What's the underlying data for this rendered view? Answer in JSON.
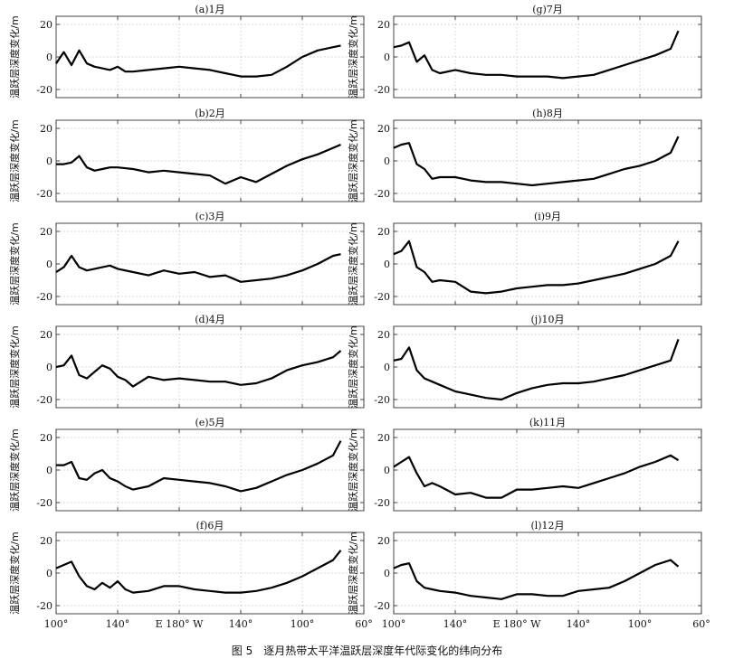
{
  "caption": "图 5　逐月热带太平洋温跃层深度年代际变化的纬向分布",
  "shared_axes": {
    "ylabel": "温跃层深度变化/m",
    "x_ticks": [
      100,
      140,
      180,
      220,
      260,
      300
    ],
    "x_tick_labels": [
      "100°",
      "140°",
      "E 180° W",
      "140°",
      "100°",
      "60°"
    ],
    "y_ticks": [
      20,
      0,
      -20
    ],
    "xlim": [
      100,
      300
    ],
    "ylim": [
      -25,
      25
    ],
    "grid": "dotted",
    "line_color": "#000000"
  },
  "chart_data": [
    {
      "type": "line",
      "title": "(a)1月",
      "x": [
        100,
        105,
        110,
        115,
        120,
        125,
        130,
        135,
        140,
        145,
        150,
        160,
        170,
        180,
        190,
        200,
        210,
        220,
        230,
        240,
        250,
        260,
        270,
        280,
        285
      ],
      "values": [
        -4,
        3,
        -5,
        4,
        -4,
        -6,
        -7,
        -8,
        -6,
        -9,
        -9,
        -8,
        -7,
        -6,
        -7,
        -8,
        -10,
        -12,
        -12,
        -11,
        -6,
        0,
        4,
        6,
        7
      ]
    },
    {
      "type": "line",
      "title": "(b)2月",
      "x": [
        100,
        105,
        110,
        115,
        120,
        125,
        130,
        135,
        140,
        150,
        160,
        170,
        180,
        190,
        200,
        210,
        220,
        230,
        240,
        250,
        260,
        270,
        280,
        285
      ],
      "values": [
        -2,
        -2,
        -1,
        3,
        -4,
        -6,
        -5,
        -4,
        -4,
        -5,
        -7,
        -6,
        -7,
        -8,
        -9,
        -14,
        -10,
        -13,
        -8,
        -3,
        1,
        4,
        8,
        10
      ]
    },
    {
      "type": "line",
      "title": "(c)3月",
      "x": [
        100,
        105,
        110,
        115,
        120,
        125,
        130,
        135,
        140,
        150,
        160,
        170,
        180,
        190,
        200,
        210,
        220,
        230,
        240,
        250,
        260,
        270,
        280,
        285
      ],
      "values": [
        -5,
        -2,
        5,
        -2,
        -4,
        -3,
        -2,
        -1,
        -3,
        -5,
        -7,
        -4,
        -6,
        -5,
        -8,
        -7,
        -11,
        -10,
        -9,
        -7,
        -4,
        0,
        5,
        6
      ]
    },
    {
      "type": "line",
      "title": "(d)4月",
      "x": [
        100,
        105,
        110,
        115,
        120,
        125,
        130,
        135,
        140,
        145,
        150,
        160,
        170,
        180,
        190,
        200,
        210,
        220,
        230,
        240,
        250,
        260,
        270,
        280,
        285
      ],
      "values": [
        0,
        1,
        7,
        -5,
        -7,
        -3,
        1,
        -1,
        -6,
        -8,
        -12,
        -6,
        -8,
        -7,
        -8,
        -9,
        -9,
        -11,
        -10,
        -7,
        -2,
        1,
        3,
        6,
        10
      ]
    },
    {
      "type": "line",
      "title": "(e)5月",
      "x": [
        100,
        105,
        110,
        115,
        120,
        125,
        130,
        135,
        140,
        145,
        150,
        160,
        170,
        180,
        190,
        200,
        210,
        220,
        230,
        240,
        250,
        260,
        270,
        280,
        285
      ],
      "values": [
        3,
        3,
        5,
        -5,
        -6,
        -2,
        0,
        -5,
        -7,
        -10,
        -12,
        -10,
        -5,
        -6,
        -7,
        -8,
        -10,
        -13,
        -11,
        -7,
        -3,
        0,
        4,
        9,
        18
      ]
    },
    {
      "type": "line",
      "title": "(f)6月",
      "x": [
        100,
        105,
        110,
        115,
        120,
        125,
        130,
        135,
        140,
        145,
        150,
        160,
        170,
        180,
        190,
        200,
        210,
        220,
        230,
        240,
        250,
        260,
        270,
        280,
        285
      ],
      "values": [
        3,
        5,
        7,
        -2,
        -8,
        -10,
        -6,
        -9,
        -5,
        -10,
        -12,
        -11,
        -8,
        -8,
        -10,
        -11,
        -12,
        -12,
        -11,
        -9,
        -6,
        -2,
        3,
        8,
        14
      ]
    },
    {
      "type": "line",
      "title": "(g)7月",
      "x": [
        100,
        105,
        110,
        115,
        120,
        125,
        130,
        140,
        150,
        160,
        170,
        180,
        190,
        200,
        210,
        220,
        230,
        240,
        250,
        260,
        270,
        280,
        285
      ],
      "values": [
        6,
        7,
        9,
        -3,
        1,
        -8,
        -10,
        -8,
        -10,
        -11,
        -11,
        -12,
        -12,
        -12,
        -13,
        -12,
        -11,
        -8,
        -5,
        -2,
        1,
        5,
        16
      ]
    },
    {
      "type": "line",
      "title": "(h)8月",
      "x": [
        100,
        105,
        110,
        115,
        120,
        125,
        130,
        140,
        150,
        160,
        170,
        180,
        190,
        200,
        210,
        220,
        230,
        240,
        250,
        260,
        270,
        280,
        285
      ],
      "values": [
        8,
        10,
        11,
        -2,
        -5,
        -11,
        -10,
        -10,
        -12,
        -13,
        -13,
        -14,
        -15,
        -14,
        -13,
        -12,
        -11,
        -8,
        -5,
        -3,
        0,
        5,
        15
      ]
    },
    {
      "type": "line",
      "title": "(i)9月",
      "x": [
        100,
        105,
        110,
        115,
        120,
        125,
        130,
        140,
        150,
        160,
        170,
        180,
        190,
        200,
        210,
        220,
        230,
        240,
        250,
        260,
        270,
        280,
        285
      ],
      "values": [
        6,
        8,
        14,
        -2,
        -5,
        -11,
        -10,
        -11,
        -17,
        -18,
        -17,
        -15,
        -14,
        -13,
        -13,
        -12,
        -10,
        -8,
        -6,
        -3,
        0,
        5,
        14
      ]
    },
    {
      "type": "line",
      "title": "(j)10月",
      "x": [
        100,
        105,
        110,
        115,
        120,
        125,
        130,
        140,
        150,
        160,
        170,
        180,
        190,
        200,
        210,
        220,
        230,
        240,
        250,
        260,
        270,
        280,
        285
      ],
      "values": [
        4,
        5,
        12,
        -2,
        -7,
        -9,
        -11,
        -15,
        -17,
        -19,
        -20,
        -16,
        -13,
        -11,
        -10,
        -10,
        -9,
        -7,
        -5,
        -2,
        1,
        4,
        17
      ]
    },
    {
      "type": "line",
      "title": "(k)11月",
      "x": [
        100,
        105,
        110,
        115,
        120,
        125,
        130,
        140,
        150,
        160,
        170,
        180,
        190,
        200,
        210,
        220,
        230,
        240,
        250,
        260,
        270,
        280,
        285
      ],
      "values": [
        2,
        5,
        8,
        -2,
        -10,
        -8,
        -10,
        -15,
        -14,
        -17,
        -17,
        -12,
        -12,
        -11,
        -10,
        -11,
        -8,
        -5,
        -2,
        2,
        5,
        9,
        6
      ]
    },
    {
      "type": "line",
      "title": "(l)12月",
      "x": [
        100,
        105,
        110,
        115,
        120,
        125,
        130,
        140,
        150,
        160,
        170,
        180,
        190,
        200,
        210,
        220,
        230,
        240,
        250,
        260,
        270,
        280,
        285
      ],
      "values": [
        3,
        5,
        6,
        -5,
        -9,
        -10,
        -11,
        -12,
        -14,
        -15,
        -16,
        -13,
        -13,
        -14,
        -14,
        -11,
        -10,
        -9,
        -5,
        0,
        5,
        8,
        4
      ]
    }
  ]
}
